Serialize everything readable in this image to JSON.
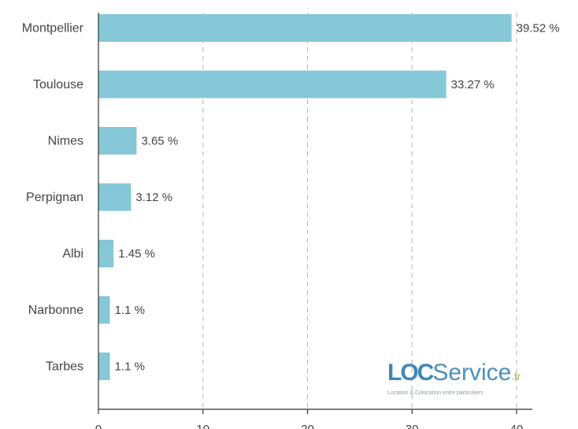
{
  "chart_data": {
    "type": "bar",
    "orientation": "horizontal",
    "categories": [
      "Montpellier",
      "Toulouse",
      "Nimes",
      "Perpignan",
      "Albi",
      "Narbonne",
      "Tarbes"
    ],
    "values": [
      39.52,
      33.27,
      3.65,
      3.12,
      1.45,
      1.1,
      1.1
    ],
    "value_labels": [
      "39.52 %",
      "33.27 %",
      "3.65 %",
      "3.12 %",
      "1.45 %",
      "1.1 %",
      "1.1 %"
    ],
    "x_ticks": [
      "0",
      "10",
      "20",
      "30",
      "40"
    ],
    "xlim": [
      0,
      40
    ],
    "grid": "vertical dashed",
    "bar_color": "#86c8d8"
  },
  "watermark": {
    "brand_part1": "LOC",
    "brand_part2": "Service",
    "brand_suffix": ".fr",
    "tagline": "Location & Colocation entre particuliers"
  }
}
